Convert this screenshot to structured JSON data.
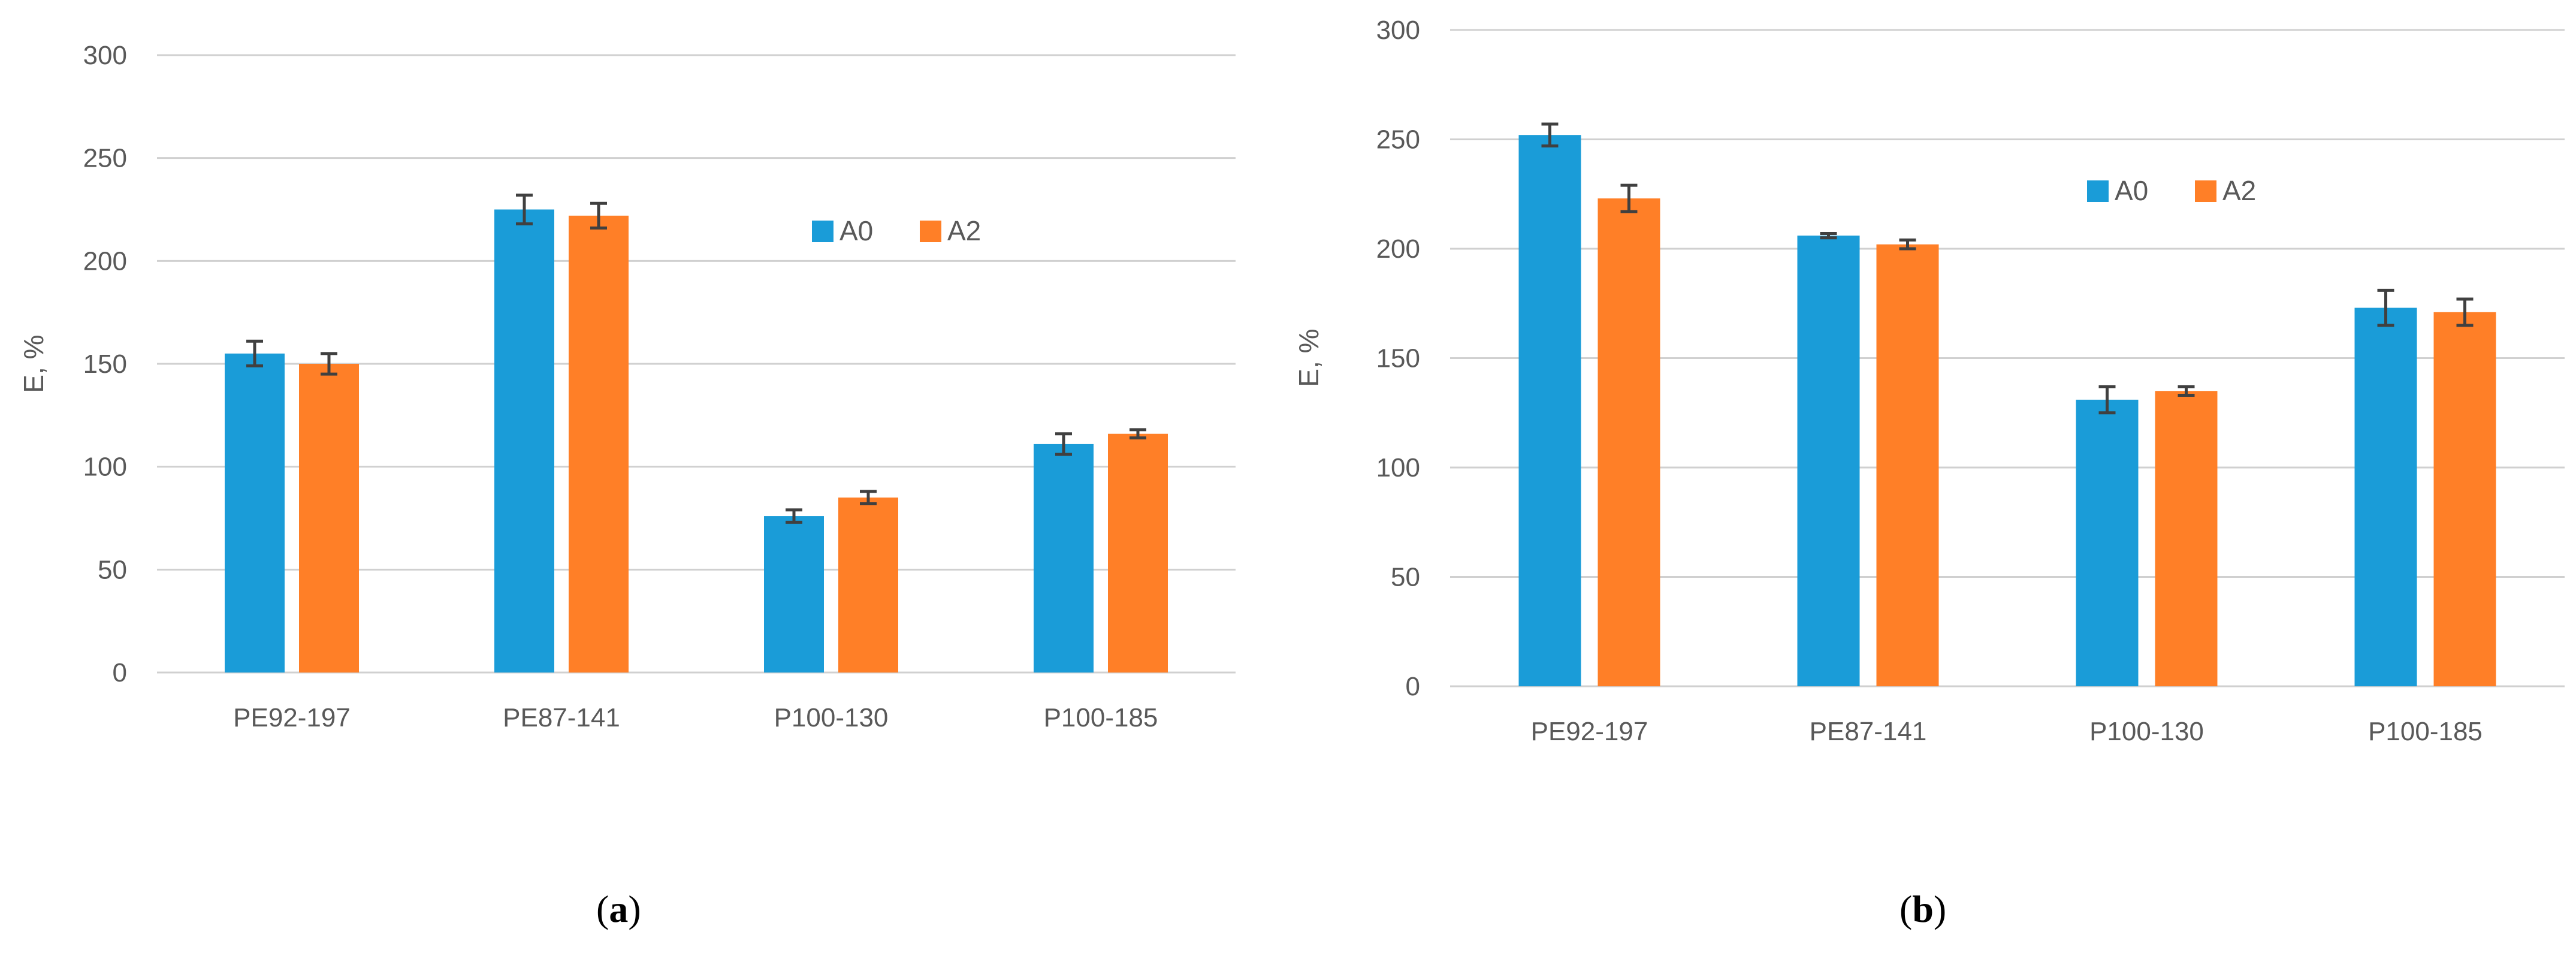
{
  "colors": {
    "A0": "#1a9cd8",
    "A2": "#ff7f27",
    "grid": "#d0d0d0",
    "text": "#595959",
    "error": "#404040"
  },
  "chart_data": [
    {
      "panel": "a",
      "panel_label": "a",
      "type": "bar",
      "ylabel": "E, %",
      "ylim": [
        0,
        300
      ],
      "yticks": [
        0,
        50,
        100,
        150,
        200,
        250,
        300
      ],
      "grid": true,
      "legend_position": "center-right",
      "categories": [
        "PE92-197",
        "PE87-141",
        "P100-130",
        "P100-185"
      ],
      "series": [
        {
          "name": "A0",
          "values": [
            155,
            225,
            76,
            111
          ],
          "errors": [
            6,
            7,
            3,
            5
          ]
        },
        {
          "name": "A2",
          "values": [
            150,
            222,
            85,
            116
          ],
          "errors": [
            5,
            6,
            3,
            2
          ]
        }
      ]
    },
    {
      "panel": "b",
      "panel_label": "b",
      "type": "bar",
      "ylabel": "E, %",
      "ylim": [
        0,
        300
      ],
      "yticks": [
        0,
        50,
        100,
        150,
        200,
        250,
        300
      ],
      "grid": true,
      "legend_position": "center-right",
      "categories": [
        "PE92-197",
        "PE87-141",
        "P100-130",
        "P100-185"
      ],
      "series": [
        {
          "name": "A0",
          "values": [
            252,
            206,
            131,
            173
          ],
          "errors": [
            5,
            1,
            6,
            8
          ]
        },
        {
          "name": "A2",
          "values": [
            223,
            202,
            135,
            171
          ],
          "errors": [
            6,
            2,
            2,
            6
          ]
        }
      ]
    }
  ]
}
